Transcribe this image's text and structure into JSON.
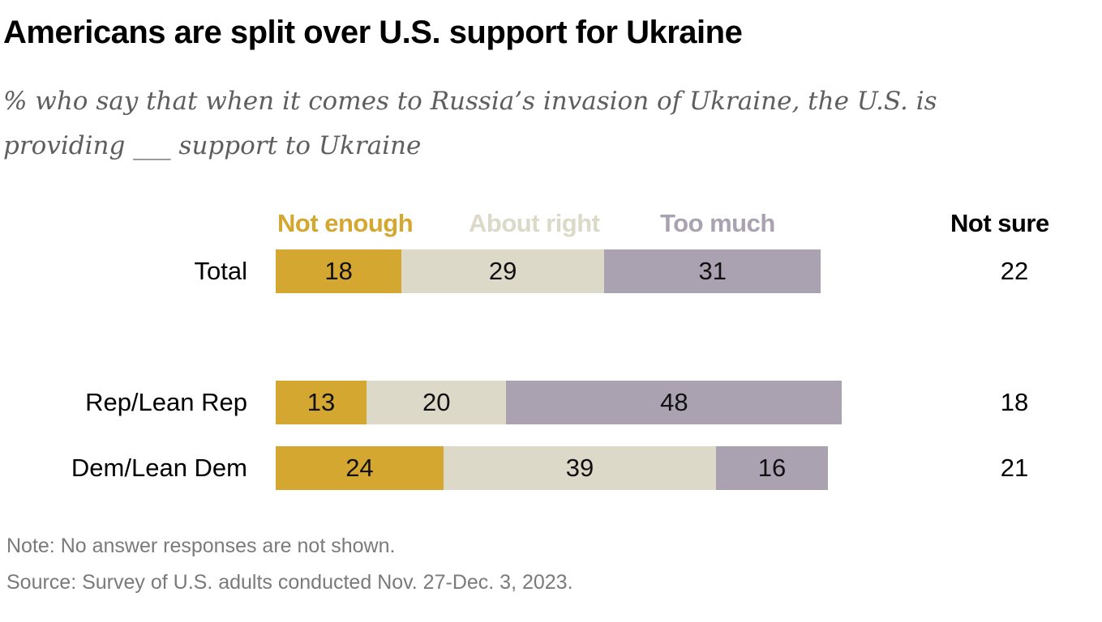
{
  "chart_data": {
    "type": "bar",
    "orientation": "horizontal",
    "stacked": true,
    "title": "Americans are split over U.S. support for Ukraine",
    "subtitle": "% who say that when it comes to Russia’s invasion of Ukraine, the U.S. is providing ___ support to Ukraine",
    "categories": [
      "Total",
      "Rep/Lean Rep",
      "Dem/Lean Dem"
    ],
    "series": [
      {
        "name": "Not enough",
        "color": "#d4a731",
        "values": [
          18,
          13,
          24
        ]
      },
      {
        "name": "About right",
        "color": "#dcd9c9",
        "values": [
          29,
          20,
          39
        ]
      },
      {
        "name": "Too much",
        "color": "#aba2b1",
        "values": [
          31,
          48,
          16
        ]
      }
    ],
    "extra_column": {
      "name": "Not sure",
      "values": [
        22,
        18,
        21
      ]
    },
    "note": "Note: No answer responses are not shown.",
    "source": "Source: Survey of U.S. adults conducted Nov. 27-Dec. 3, 2023.",
    "xlabel": "",
    "ylabel": "",
    "grid": false,
    "legend_position": "top"
  }
}
